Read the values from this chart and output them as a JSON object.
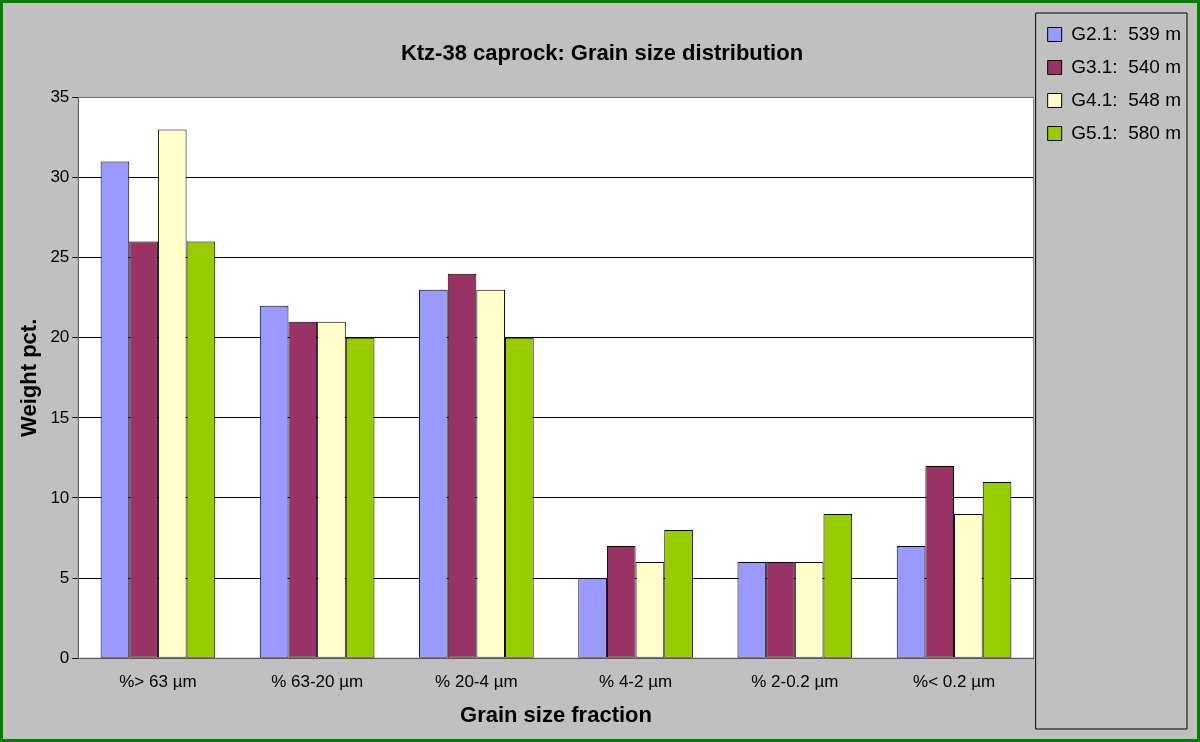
{
  "chart_data": {
    "type": "bar",
    "title": "Ktz-38 caprock: Grain size distribution",
    "xlabel": "Grain size fraction",
    "ylabel": "Weight pct.",
    "categories": [
      "%> 63 µm",
      "% 63-20 µm",
      "% 20-4 µm",
      "% 4-2 µm",
      "% 2-0.2 µm",
      "%< 0.2 µm"
    ],
    "series": [
      {
        "name": "G2.1:  539 m",
        "color": "#9999ff",
        "values": [
          31,
          22,
          23,
          5,
          6,
          7
        ]
      },
      {
        "name": "G3.1:  540 m",
        "color": "#993366",
        "values": [
          26,
          21,
          24,
          7,
          6,
          12
        ]
      },
      {
        "name": "G4.1:  548 m",
        "color": "#ffffcc",
        "values": [
          33,
          21,
          23,
          6,
          6,
          9
        ]
      },
      {
        "name": "G5.1:  580 m",
        "color": "#99cc00",
        "values": [
          26,
          20,
          20,
          8,
          9,
          11
        ]
      }
    ],
    "ylim": [
      0,
      35
    ],
    "yticks": [
      0,
      5,
      10,
      15,
      20,
      25,
      30,
      35
    ],
    "grid": "y",
    "legend": "right"
  }
}
